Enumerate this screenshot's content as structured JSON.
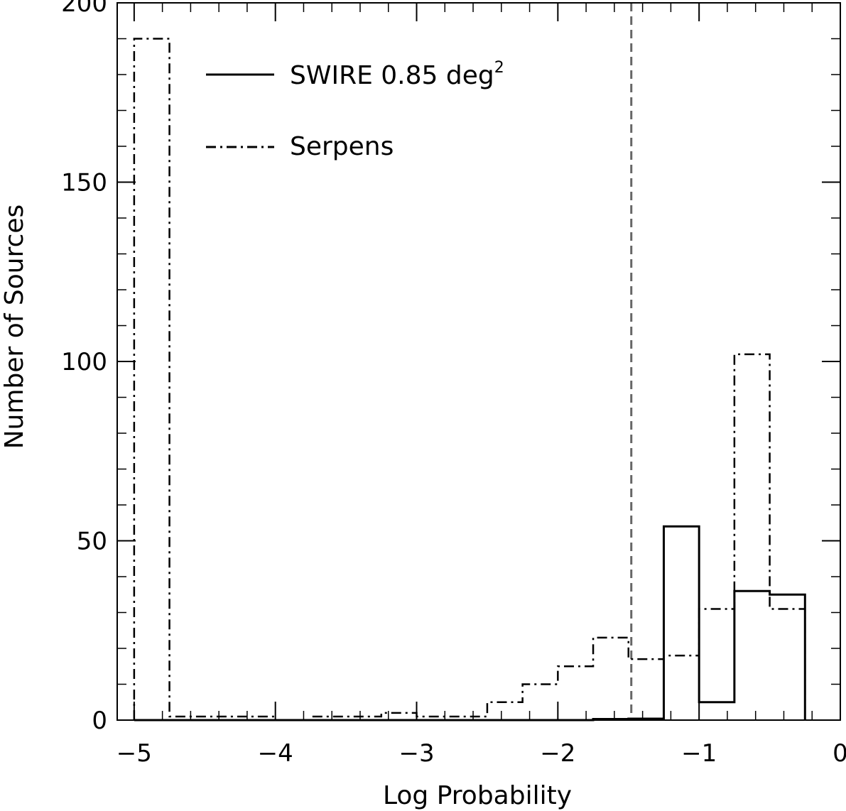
{
  "chart_data": {
    "type": "histogram",
    "xlabel": "Log Probability",
    "ylabel": "Number of Sources",
    "xlim": [
      -5.12,
      0
    ],
    "ylim": [
      0,
      200
    ],
    "x_ticks": [
      {
        "value": -5,
        "label": "−5"
      },
      {
        "value": -4,
        "label": "−4"
      },
      {
        "value": -3,
        "label": "−3"
      },
      {
        "value": -2,
        "label": "−2"
      },
      {
        "value": -1,
        "label": "−1"
      },
      {
        "value": 0,
        "label": "0"
      }
    ],
    "y_ticks": [
      {
        "value": 0,
        "label": "0"
      },
      {
        "value": 50,
        "label": "50"
      },
      {
        "value": 100,
        "label": "100"
      },
      {
        "value": 150,
        "label": "150"
      },
      {
        "value": 200,
        "label": "200"
      }
    ],
    "y_minor_step": 10,
    "x_minor_step": 0.2,
    "legend_position": "top-left",
    "threshold": {
      "x": -1.48,
      "style": "dashed",
      "color": "#666666"
    },
    "series": [
      {
        "name": "SWIRE 0.85 deg",
        "name_superscript": "2",
        "style": "solid",
        "bin_edges": [
          -5.0,
          -4.75,
          -4.5,
          -4.25,
          -4.0,
          -3.75,
          -3.5,
          -3.25,
          -3.0,
          -2.75,
          -2.5,
          -2.25,
          -2.0,
          -1.75,
          -1.5,
          -1.25,
          -1.0,
          -0.75,
          -0.5,
          -0.25
        ],
        "counts": [
          0,
          0,
          0,
          0,
          0,
          0,
          0,
          0,
          0,
          0,
          0,
          0,
          0,
          0.3,
          0.4,
          54,
          5,
          36,
          35
        ]
      },
      {
        "name": "Serpens",
        "style": "dashdot",
        "bin_edges": [
          -5.0,
          -4.75,
          -4.5,
          -4.25,
          -4.0,
          -3.75,
          -3.5,
          -3.25,
          -3.0,
          -2.75,
          -2.5,
          -2.25,
          -2.0,
          -1.75,
          -1.5,
          -1.25,
          -1.0,
          -0.75,
          -0.5,
          -0.25
        ],
        "counts": [
          190,
          1,
          1,
          1,
          0,
          1,
          1,
          2,
          1,
          1,
          5,
          10,
          15,
          23,
          17,
          18,
          31,
          102,
          31
        ]
      }
    ]
  }
}
